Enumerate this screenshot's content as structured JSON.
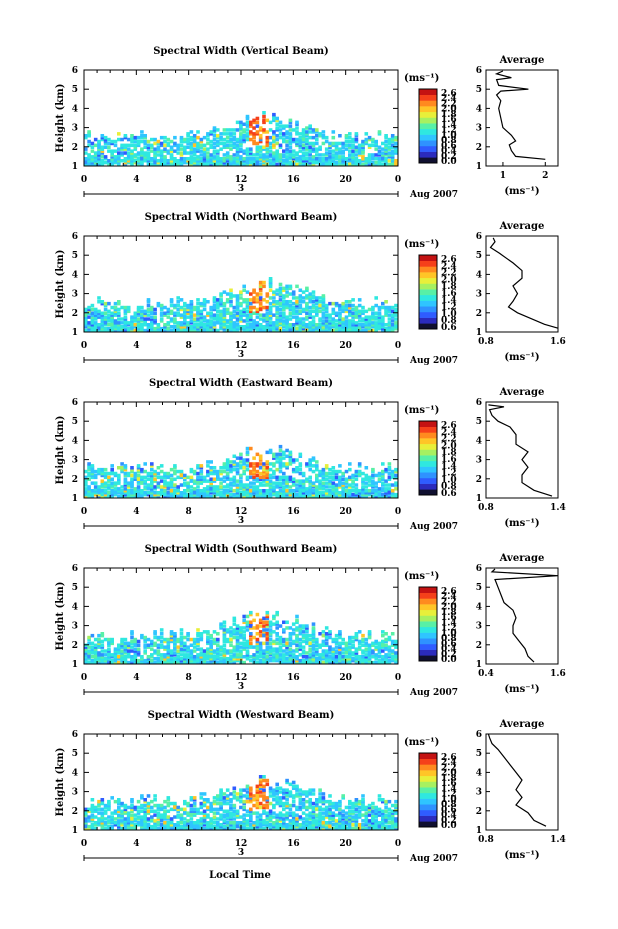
{
  "xlabel": "Local Time",
  "panels": [
    {
      "title": "Spectral Width (Vertical Beam)",
      "cb_ticks": [
        "2.6",
        "2.4",
        "2.2",
        "2.0",
        "1.8",
        "1.6",
        "1.4",
        "1.2",
        "1.0",
        "0.8",
        "0.6",
        "0.4",
        "0.2",
        "0.0"
      ],
      "avg_xticks": [
        "1",
        "2"
      ],
      "avg_xlim": [
        0.6,
        2.3
      ],
      "avg_profile": [
        [
          2.0,
          1.35
        ],
        [
          1.3,
          1.5
        ],
        [
          1.2,
          1.8
        ],
        [
          1.15,
          2.1
        ],
        [
          1.3,
          2.3
        ],
        [
          1.2,
          2.6
        ],
        [
          1.0,
          3.0
        ],
        [
          0.95,
          3.5
        ],
        [
          0.9,
          4.0
        ],
        [
          0.95,
          4.4
        ],
        [
          0.85,
          4.7
        ],
        [
          0.95,
          4.9
        ],
        [
          1.6,
          5.0
        ],
        [
          0.9,
          5.2
        ],
        [
          0.85,
          5.5
        ],
        [
          1.2,
          5.6
        ],
        [
          0.85,
          5.8
        ],
        [
          1.0,
          5.95
        ]
      ]
    },
    {
      "title": "Spectral Width (Northward Beam)",
      "cb_ticks": [
        "2.6",
        "2.4",
        "2.2",
        "2.0",
        "1.8",
        "1.6",
        "1.4",
        "1.2",
        "1.0",
        "0.8",
        "0.6"
      ],
      "avg_xticks": [
        "0.8",
        "1.6"
      ],
      "avg_xlim": [
        0.8,
        1.6
      ],
      "avg_profile": [
        [
          1.6,
          1.2
        ],
        [
          1.45,
          1.4
        ],
        [
          1.3,
          1.7
        ],
        [
          1.15,
          2.0
        ],
        [
          1.05,
          2.3
        ],
        [
          1.1,
          2.6
        ],
        [
          1.15,
          3.0
        ],
        [
          1.1,
          3.4
        ],
        [
          1.2,
          3.8
        ],
        [
          1.2,
          4.2
        ],
        [
          1.1,
          4.6
        ],
        [
          0.95,
          5.1
        ],
        [
          0.85,
          5.4
        ],
        [
          0.9,
          5.7
        ],
        [
          0.88,
          5.9
        ]
      ]
    },
    {
      "title": "Spectral Width (Eastward Beam)",
      "cb_ticks": [
        "2.6",
        "2.4",
        "2.2",
        "2.0",
        "1.8",
        "1.6",
        "1.4",
        "1.2",
        "1.0",
        "0.8",
        "0.6"
      ],
      "avg_xticks": [
        "0.8",
        "1.4"
      ],
      "avg_xlim": [
        0.8,
        1.4
      ],
      "avg_profile": [
        [
          1.35,
          1.1
        ],
        [
          1.2,
          1.4
        ],
        [
          1.1,
          1.8
        ],
        [
          1.1,
          2.2
        ],
        [
          1.15,
          2.6
        ],
        [
          1.1,
          3.0
        ],
        [
          1.15,
          3.4
        ],
        [
          1.05,
          3.8
        ],
        [
          1.05,
          4.3
        ],
        [
          1.0,
          4.7
        ],
        [
          0.9,
          5.0
        ],
        [
          0.85,
          5.3
        ],
        [
          0.83,
          5.6
        ],
        [
          0.95,
          5.75
        ],
        [
          0.82,
          5.85
        ]
      ]
    },
    {
      "title": "Spectral Width (Southward Beam)",
      "cb_ticks": [
        "2.6",
        "2.4",
        "2.2",
        "2.0",
        "1.8",
        "1.6",
        "1.4",
        "1.2",
        "1.0",
        "0.8",
        "0.6",
        "0.4",
        "0.2",
        "0.0"
      ],
      "avg_xticks": [
        "0.4",
        "1.6"
      ],
      "avg_xlim": [
        0.4,
        1.6
      ],
      "avg_profile": [
        [
          1.2,
          1.1
        ],
        [
          1.1,
          1.4
        ],
        [
          1.05,
          1.8
        ],
        [
          0.95,
          2.2
        ],
        [
          0.85,
          2.6
        ],
        [
          0.85,
          3.0
        ],
        [
          0.9,
          3.4
        ],
        [
          0.85,
          3.8
        ],
        [
          0.7,
          4.2
        ],
        [
          0.65,
          4.6
        ],
        [
          0.6,
          5.0
        ],
        [
          0.55,
          5.4
        ],
        [
          1.6,
          5.6
        ],
        [
          0.5,
          5.8
        ],
        [
          0.55,
          5.95
        ]
      ]
    },
    {
      "title": "Spectral Width (Westward Beam)",
      "cb_ticks": [
        "2.6",
        "2.4",
        "2.2",
        "2.0",
        "1.8",
        "1.6",
        "1.4",
        "1.2",
        "1.0",
        "0.8",
        "0.6",
        "0.4",
        "0.2",
        "0.0"
      ],
      "avg_xticks": [
        "0.8",
        "1.4"
      ],
      "avg_xlim": [
        0.8,
        1.4
      ],
      "avg_profile": [
        [
          1.3,
          1.2
        ],
        [
          1.2,
          1.5
        ],
        [
          1.15,
          1.9
        ],
        [
          1.05,
          2.3
        ],
        [
          1.1,
          2.7
        ],
        [
          1.05,
          3.1
        ],
        [
          1.1,
          3.6
        ],
        [
          1.05,
          4.0
        ],
        [
          1.0,
          4.4
        ],
        [
          0.95,
          4.8
        ],
        [
          0.9,
          5.2
        ],
        [
          0.85,
          5.5
        ],
        [
          0.83,
          5.8
        ],
        [
          0.82,
          6.0
        ]
      ]
    }
  ],
  "chart_data": {
    "type": "heatmap",
    "ylabel": "Height (km)",
    "ylim": [
      1,
      6
    ],
    "yticks": [
      1,
      2,
      3,
      4,
      5,
      6
    ],
    "xlim": [
      0,
      24
    ],
    "xticks": [
      "0",
      "4",
      "8",
      "12",
      "16",
      "20",
      "0"
    ],
    "date_labels": [
      "3",
      "Aug 2007"
    ],
    "colorbar_label": "(ms⁻¹)",
    "colorbar_range": [
      0.0,
      2.8
    ],
    "average_title": "Average",
    "average_xlabel": "(ms⁻¹)"
  },
  "colors": {
    "colorscale": [
      "#101030",
      "#2b2bbd",
      "#2f5cff",
      "#2f92ff",
      "#2fc5ff",
      "#2fe8e0",
      "#58f0a6",
      "#a7f060",
      "#e8ef3a",
      "#ffc527",
      "#ff8a1f",
      "#f5401a",
      "#c41212"
    ]
  }
}
